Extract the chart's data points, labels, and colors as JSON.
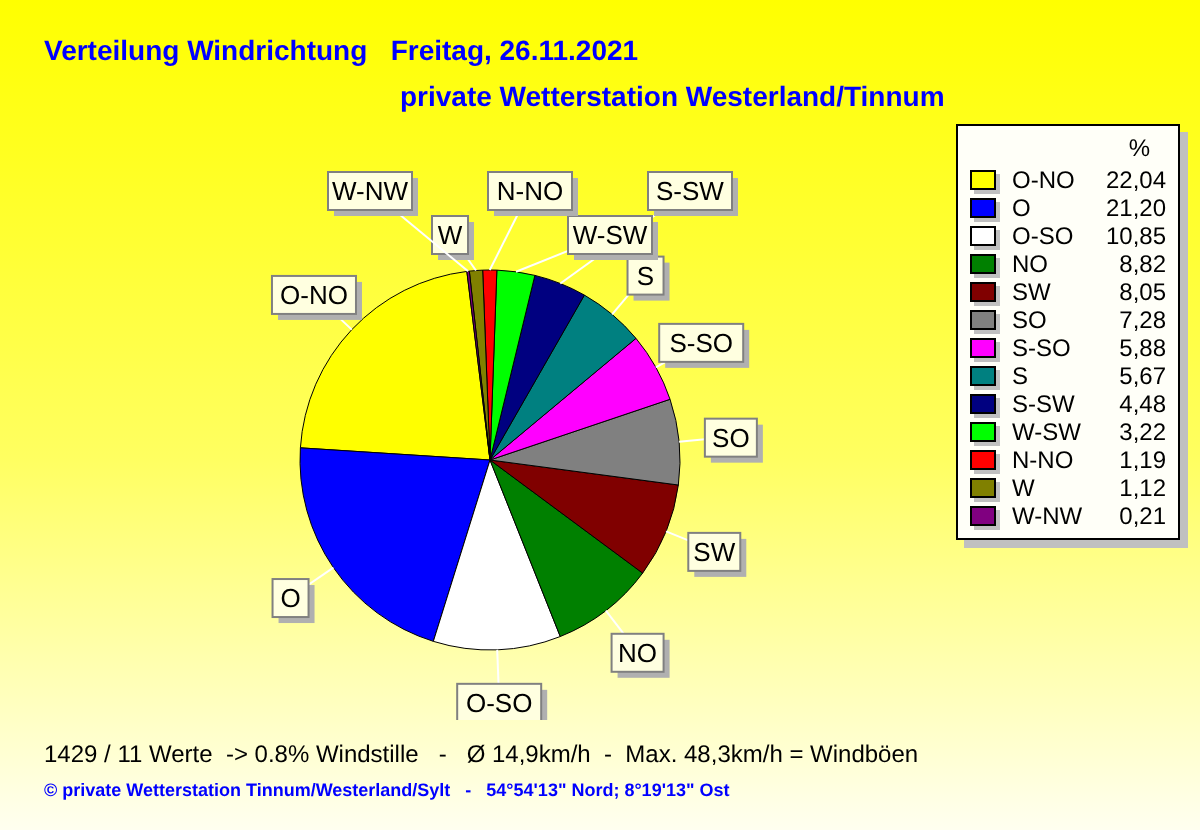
{
  "chart_data": {
    "type": "pie",
    "title": "Verteilung Windrichtung   Freitag, 26.11.2021",
    "subtitle": "private Wetterstation Westerland/Tinnum",
    "categories": [
      "O-NO",
      "O",
      "O-SO",
      "NO",
      "SW",
      "SO",
      "S-SO",
      "S",
      "S-SW",
      "W-SW",
      "N-NO",
      "W",
      "W-NW"
    ],
    "values": [
      22.04,
      21.2,
      10.85,
      8.82,
      8.05,
      7.28,
      5.88,
      5.67,
      4.48,
      3.22,
      1.19,
      1.12,
      0.21
    ],
    "colors": [
      "#ffff00",
      "#0000ff",
      "#ffffff",
      "#008000",
      "#800000",
      "#808080",
      "#ff00ff",
      "#008080",
      "#000080",
      "#00ff00",
      "#ff0000",
      "#808000",
      "#800080"
    ],
    "value_labels": [
      "22,04",
      "21,20",
      "10,85",
      "8,82",
      "8,05",
      "7,28",
      "5,88",
      "5,67",
      "4,48",
      "3,22",
      "1,19",
      "1,12",
      "0,21"
    ],
    "legend": "right",
    "legend_title": "%",
    "data_labels": true,
    "annotations": [
      "1429 / 11 Werte  -> 0.8% Windstille   -   Ø 14,9km/h  -  Max. 48,3km/h = Windböen",
      "© private Wetterstation Tinnum/Westerland/Sylt   -   54°54'13\" Nord; 8°19'13\" Ost"
    ]
  }
}
